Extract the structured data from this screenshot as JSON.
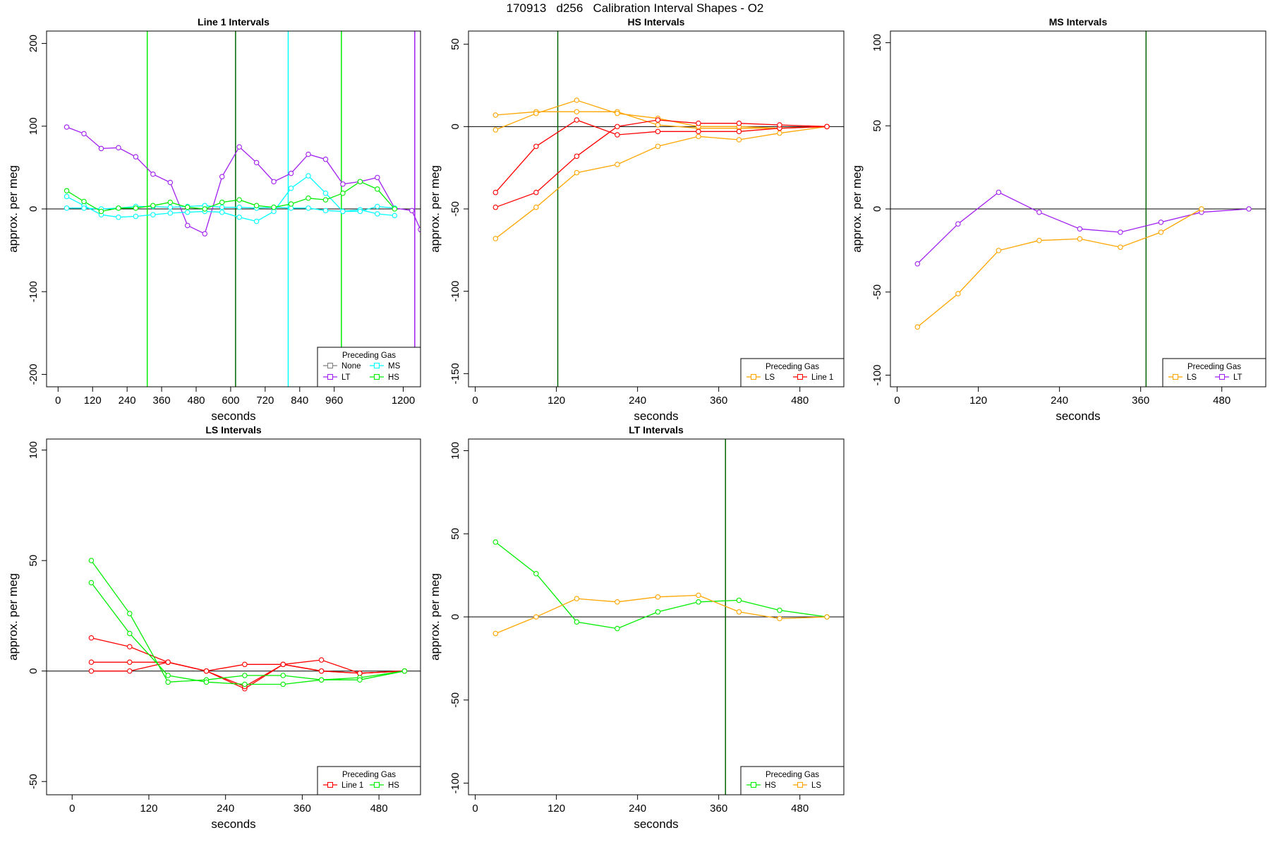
{
  "title": "170913   d256   Calibration Interval Shapes - O2",
  "colors": {
    "None": "#808080",
    "LT": "#a020f0",
    "MS": "#00ffff",
    "HS": "#00ee00",
    "LS": "#ffa500",
    "Line 1": "#ff0000",
    "HS_vline": "#006400",
    "axis": "#000000"
  },
  "chart_data": [
    {
      "type": "line",
      "title": "Line 1 Intervals",
      "xlabel": "seconds",
      "ylabel": "approx. per meg",
      "xlim": [
        -40,
        1260
      ],
      "ylim": [
        -215,
        215
      ],
      "xticks": [
        0,
        120,
        240,
        360,
        480,
        600,
        720,
        840,
        960,
        1200
      ],
      "yticks": [
        -200,
        -100,
        0,
        100,
        200
      ],
      "hline": 0,
      "vlines": [
        {
          "x": 310,
          "color": "HS"
        },
        {
          "x": 617,
          "color": "HS_vline"
        },
        {
          "x": 800,
          "color": "MS"
        },
        {
          "x": 985,
          "color": "HS"
        },
        {
          "x": 1240,
          "color": "LT"
        }
      ],
      "legend": {
        "title": "Preceding Gas",
        "position": "bottom-right",
        "columns": 2,
        "entries": [
          "None",
          "LT",
          "MS",
          "HS"
        ]
      },
      "series": [
        {
          "name": "LT",
          "x": [
            30,
            90,
            150,
            210,
            270,
            330,
            390,
            450,
            510,
            570,
            630,
            690,
            750,
            810,
            870,
            930,
            990,
            1050,
            1110,
            1170,
            1230,
            1260
          ],
          "y": [
            99,
            91,
            73,
            74,
            63,
            42,
            32,
            -20,
            -30,
            39,
            75,
            56,
            33,
            43,
            66,
            60,
            30,
            33,
            38,
            1,
            -2,
            -25
          ]
        },
        {
          "name": "MS",
          "x": [
            30,
            90,
            150,
            210,
            270,
            330,
            390,
            450,
            510,
            570,
            630,
            690,
            750,
            810,
            870,
            930,
            990,
            1050,
            1110,
            1170
          ],
          "y": [
            15,
            4,
            -7,
            -10,
            -9,
            -7,
            -5,
            -4,
            -3,
            -4,
            -10,
            -15,
            -3,
            25,
            40,
            19,
            -3,
            -1,
            -6,
            -8
          ]
        },
        {
          "name": "MS",
          "x": [
            30,
            90,
            150,
            210,
            270,
            330,
            390,
            450,
            510,
            570,
            630,
            690,
            750,
            810,
            870,
            930,
            990,
            1050,
            1110,
            1170
          ],
          "y": [
            1,
            1,
            0,
            1,
            3,
            3,
            2,
            3,
            4,
            2,
            2,
            1,
            2,
            1,
            1,
            -2,
            -3,
            -3,
            3,
            1
          ]
        },
        {
          "name": "HS",
          "x": [
            30,
            90,
            150,
            210,
            270,
            330,
            390,
            450,
            510,
            570,
            630,
            690,
            750,
            810,
            870,
            930,
            990,
            1050,
            1110,
            1170
          ],
          "y": [
            22,
            9,
            -3,
            1,
            1,
            4,
            8,
            2,
            0,
            8,
            11,
            4,
            2,
            6,
            13,
            11,
            19,
            33,
            24,
            0
          ]
        }
      ]
    },
    {
      "type": "line",
      "title": "HS Intervals",
      "xlabel": "seconds",
      "ylabel": "approx. per meg",
      "xlim": [
        -10,
        545
      ],
      "ylim": [
        -158,
        58
      ],
      "xticks": [
        0,
        120,
        240,
        360,
        480
      ],
      "yticks": [
        -150,
        -100,
        -50,
        0,
        50
      ],
      "hline": 0,
      "vlines": [
        {
          "x": 122,
          "color": "HS_vline"
        }
      ],
      "legend": {
        "title": "Preceding Gas",
        "position": "bottom-right",
        "columns": 2,
        "entries": [
          "LS",
          "Line 1"
        ]
      },
      "series": [
        {
          "name": "LS",
          "x": [
            30,
            90,
            150,
            210,
            270,
            330,
            390,
            450,
            520
          ],
          "y": [
            7,
            9,
            9,
            9,
            1,
            -1,
            -1,
            -1,
            0
          ]
        },
        {
          "name": "LS",
          "x": [
            30,
            90,
            150,
            210,
            270,
            330,
            390,
            450,
            520
          ],
          "y": [
            -2,
            8,
            16,
            8,
            5,
            0,
            0,
            -1,
            0
          ]
        },
        {
          "name": "LS",
          "x": [
            30,
            90,
            150,
            210,
            270,
            330,
            390,
            450,
            520
          ],
          "y": [
            -68,
            -49,
            -28,
            -23,
            -12,
            -6,
            -8,
            -4,
            0
          ]
        },
        {
          "name": "Line 1",
          "x": [
            30,
            90,
            150,
            210,
            270,
            330,
            390,
            450,
            520
          ],
          "y": [
            -40,
            -12,
            4,
            -5,
            -3,
            -3,
            -3,
            -1,
            0
          ]
        },
        {
          "name": "Line 1",
          "x": [
            30,
            90,
            150,
            210,
            270,
            330,
            390,
            450,
            520
          ],
          "y": [
            -49,
            -40,
            -18,
            0,
            4,
            2,
            2,
            1,
            0
          ]
        }
      ]
    },
    {
      "type": "line",
      "title": "MS Intervals",
      "xlabel": "seconds",
      "ylabel": "approx. per meg",
      "xlim": [
        -10,
        545
      ],
      "ylim": [
        -107,
        107
      ],
      "xticks": [
        0,
        120,
        240,
        360,
        480
      ],
      "yticks": [
        -100,
        -50,
        0,
        50,
        100
      ],
      "hline": 0,
      "vlines": [
        {
          "x": 368,
          "color": "HS_vline"
        }
      ],
      "legend": {
        "title": "Preceding Gas",
        "position": "bottom-right",
        "columns": 2,
        "entries": [
          "LS",
          "LT"
        ]
      },
      "series": [
        {
          "name": "LT",
          "x": [
            30,
            90,
            150,
            210,
            270,
            330,
            390,
            450,
            520
          ],
          "y": [
            -33,
            -9,
            10,
            -2,
            -12,
            -14,
            -8,
            -2,
            0
          ]
        },
        {
          "name": "LS",
          "x": [
            30,
            90,
            150,
            210,
            270,
            330,
            390,
            450
          ],
          "y": [
            -71,
            -51,
            -25,
            -19,
            -18,
            -23,
            -14,
            0
          ]
        }
      ]
    },
    {
      "type": "line",
      "title": "LS Intervals",
      "xlabel": "seconds",
      "ylabel": "approx. per meg",
      "xlim": [
        -40,
        545
      ],
      "ylim": [
        -56,
        105
      ],
      "xticks": [
        0,
        120,
        240,
        360,
        480
      ],
      "yticks": [
        -50,
        0,
        50,
        100
      ],
      "hline": 0,
      "vlines": [],
      "legend": {
        "title": "Preceding Gas",
        "position": "bottom-right",
        "columns": 2,
        "entries": [
          "Line 1",
          "HS"
        ]
      },
      "series": [
        {
          "name": "Line 1",
          "x": [
            30,
            90,
            150,
            210,
            270,
            330,
            390,
            450,
            520
          ],
          "y": [
            15,
            11,
            4,
            0,
            -8,
            3,
            5,
            -1,
            0
          ]
        },
        {
          "name": "Line 1",
          "x": [
            30,
            90,
            150,
            210,
            270,
            330,
            390,
            450,
            520
          ],
          "y": [
            4,
            4,
            4,
            0,
            3,
            3,
            0,
            -1,
            0
          ]
        },
        {
          "name": "Line 1",
          "x": [
            30,
            90,
            150,
            210,
            270,
            330,
            390,
            450,
            520
          ],
          "y": [
            0,
            0,
            4,
            0,
            -7,
            3,
            0,
            -1,
            0
          ]
        },
        {
          "name": "HS",
          "x": [
            30,
            90,
            150,
            210,
            270,
            330,
            390,
            450,
            520
          ],
          "y": [
            50,
            26,
            -5,
            -4,
            -2,
            -2,
            -4,
            -3,
            0
          ]
        },
        {
          "name": "HS",
          "x": [
            30,
            90,
            150,
            210,
            270,
            330,
            390,
            450,
            520
          ],
          "y": [
            40,
            17,
            -2,
            -5,
            -6,
            -6,
            -4,
            -4,
            0
          ]
        }
      ]
    },
    {
      "type": "line",
      "title": "LT Intervals",
      "xlabel": "seconds",
      "ylabel": "approx. per meg",
      "xlim": [
        -10,
        545
      ],
      "ylim": [
        -107,
        107
      ],
      "xticks": [
        0,
        120,
        240,
        360,
        480
      ],
      "yticks": [
        -100,
        -50,
        0,
        50,
        100
      ],
      "hline": 0,
      "vlines": [
        {
          "x": 370,
          "color": "HS_vline"
        }
      ],
      "legend": {
        "title": "Preceding Gas",
        "position": "bottom-right",
        "columns": 2,
        "entries": [
          "HS",
          "LS"
        ]
      },
      "series": [
        {
          "name": "HS",
          "x": [
            30,
            90,
            150,
            210,
            270,
            330,
            390,
            450,
            520
          ],
          "y": [
            45,
            26,
            -3,
            -7,
            3,
            9,
            10,
            4,
            0
          ]
        },
        {
          "name": "LS",
          "x": [
            30,
            90,
            150,
            210,
            270,
            330,
            390,
            450,
            520
          ],
          "y": [
            -10,
            0,
            11,
            9,
            12,
            13,
            3,
            -1,
            0
          ]
        }
      ]
    }
  ]
}
